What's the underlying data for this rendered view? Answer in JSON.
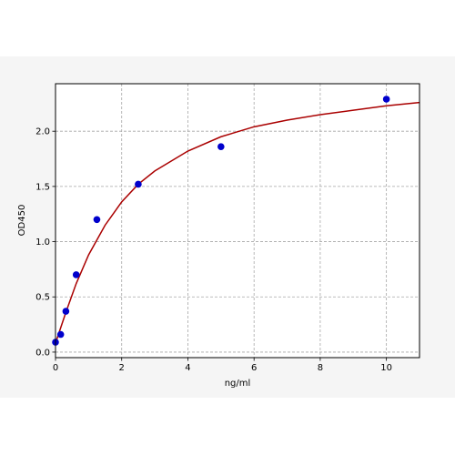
{
  "chart_data": {
    "type": "scatter",
    "xlabel": "ng/ml",
    "ylabel": "OD450",
    "xlim": [
      0,
      11
    ],
    "ylim": [
      -0.05,
      2.43
    ],
    "x_ticks": [
      0,
      2,
      4,
      6,
      8,
      10
    ],
    "y_ticks": [
      0.0,
      0.5,
      1.0,
      1.5,
      2.0
    ],
    "x_tick_labels": [
      "0",
      "2",
      "4",
      "6",
      "8",
      "10"
    ],
    "y_tick_labels": [
      "0.0",
      "0.5",
      "1.0",
      "1.5",
      "2.0"
    ],
    "grid": true,
    "series": [
      {
        "kind": "points",
        "x": [
          0,
          0.156,
          0.313,
          0.625,
          1.25,
          2.5,
          5,
          10
        ],
        "y": [
          0.09,
          0.16,
          0.37,
          0.7,
          1.2,
          1.52,
          1.86,
          2.29
        ],
        "color": "#0000cc"
      },
      {
        "kind": "fit-curve",
        "x": [
          0,
          0.156,
          0.313,
          0.625,
          1,
          1.5,
          2,
          2.5,
          3,
          4,
          5,
          6,
          7,
          8,
          9,
          10,
          11
        ],
        "y": [
          0.08,
          0.22,
          0.36,
          0.62,
          0.88,
          1.15,
          1.36,
          1.52,
          1.64,
          1.82,
          1.95,
          2.04,
          2.1,
          2.15,
          2.19,
          2.23,
          2.26
        ],
        "color": "#aa0000"
      }
    ]
  }
}
